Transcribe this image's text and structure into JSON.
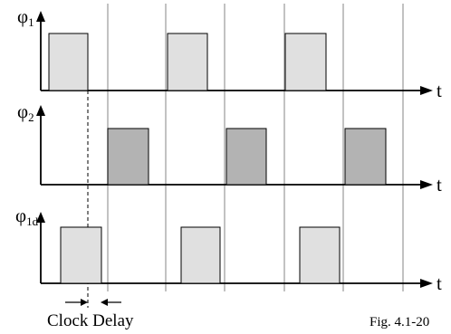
{
  "signals": [
    {
      "main": "φ",
      "sub": "1",
      "pulse_color": "#e0e0e0"
    },
    {
      "main": "φ",
      "sub": "2",
      "pulse_color": "#b3b3b3"
    },
    {
      "main": "φ",
      "sub": "1d",
      "pulse_color": "#e0e0e0"
    }
  ],
  "time_label": "t",
  "clock_delay_label": "Clock Delay",
  "figure_label": "Fig. 4.1-20",
  "colors": {
    "axis": "#000000",
    "gridline": "#9a9a9a",
    "pulse_stroke": "#000000"
  }
}
